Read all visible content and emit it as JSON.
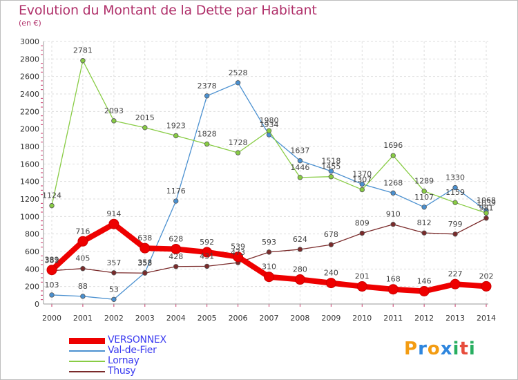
{
  "header": {
    "title": "Evolution du Montant de la Dette par Habitant",
    "unit": "(en €)"
  },
  "logo": {
    "text": "Proxiti",
    "letters": [
      "P",
      "r",
      "o",
      "x",
      "i",
      "t",
      "i"
    ],
    "colors": [
      "#f39c12",
      "#2e86de",
      "#f39c12",
      "#2e86de",
      "#27ae60",
      "#e74c3c",
      "#27ae60"
    ]
  },
  "chart_data": {
    "type": "line",
    "title": "Evolution du Montant de la Dette par Habitant",
    "ylabel": "(en €)",
    "xlabel": "",
    "x": [
      "2000",
      "2001",
      "2002",
      "2003",
      "2004",
      "2005",
      "2006",
      "2007",
      "2008",
      "2009",
      "2010",
      "2011",
      "2012",
      "2013",
      "2014"
    ],
    "ylim": [
      0,
      3000
    ],
    "yticks": [
      "0",
      "200",
      "400",
      "600",
      "800",
      "1000",
      "1200",
      "1400",
      "1600",
      "1800",
      "2000",
      "2200",
      "2400",
      "2600",
      "2800",
      "3000"
    ],
    "grid": true,
    "legend_position": "bottom-left",
    "series": [
      {
        "name": "VERSONNEX",
        "color": "#ee0000",
        "values": [
          389,
          716,
          914,
          638,
          628,
          592,
          539,
          310,
          280,
          240,
          201,
          168,
          146,
          227,
          202
        ]
      },
      {
        "name": "Val-de-Fier",
        "color": "#4a90d0",
        "values": [
          103,
          88,
          53,
          358,
          1176,
          2378,
          2528,
          1934,
          1637,
          1518,
          1370,
          1268,
          1107,
          1330,
          1068
        ]
      },
      {
        "name": "Lornay",
        "color": "#88cc44",
        "values": [
          1124,
          2781,
          2093,
          2015,
          1923,
          1828,
          1728,
          1980,
          1446,
          1455,
          1307,
          1696,
          1289,
          1159,
          1039
        ]
      },
      {
        "name": "Thusy",
        "color": "#7a2a2a",
        "values": [
          381,
          405,
          357,
          353,
          428,
          431,
          473,
          593,
          624,
          678,
          809,
          910,
          812,
          799,
          981
        ]
      }
    ]
  }
}
